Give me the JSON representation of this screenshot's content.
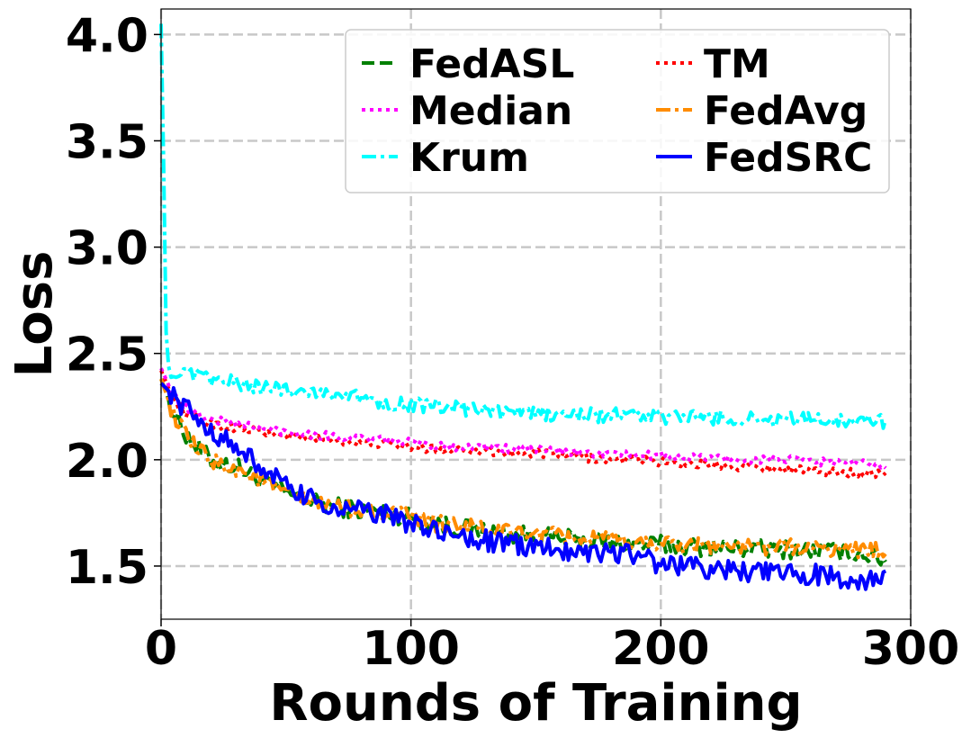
{
  "chart_data": {
    "type": "line",
    "title": "",
    "xlabel": "Rounds of Training",
    "ylabel": "Loss",
    "xlim": [
      0,
      300
    ],
    "ylim": [
      1.25,
      4.12
    ],
    "xticks": [
      0,
      100,
      200,
      300
    ],
    "yticks": [
      1.5,
      2.0,
      2.5,
      3.0,
      3.5,
      4.0
    ],
    "xtick_labels": [
      "0",
      "100",
      "200",
      "300"
    ],
    "ytick_labels": [
      "1.5",
      "2.0",
      "2.5",
      "3.0",
      "3.5",
      "4.0"
    ],
    "grid": true,
    "legend_position": "top-right",
    "series": [
      {
        "name": "FedASL",
        "color": "#008000",
        "dash": "dashed",
        "width": 4,
        "x": [
          0,
          5,
          10,
          15,
          20,
          25,
          30,
          40,
          50,
          60,
          70,
          80,
          90,
          100,
          110,
          120,
          130,
          140,
          150,
          160,
          170,
          180,
          190,
          200,
          210,
          220,
          230,
          240,
          250,
          260,
          270,
          280,
          290
        ],
        "y": [
          2.38,
          2.22,
          2.12,
          2.05,
          2.0,
          1.98,
          1.97,
          1.9,
          1.84,
          1.8,
          1.78,
          1.76,
          1.75,
          1.73,
          1.7,
          1.68,
          1.66,
          1.65,
          1.64,
          1.63,
          1.62,
          1.61,
          1.6,
          1.6,
          1.59,
          1.59,
          1.58,
          1.58,
          1.58,
          1.57,
          1.57,
          1.56,
          1.53
        ]
      },
      {
        "name": "TM",
        "color": "#ff0000",
        "dash": "dotted",
        "width": 4,
        "x": [
          0,
          5,
          10,
          15,
          20,
          25,
          30,
          40,
          50,
          60,
          70,
          80,
          90,
          100,
          110,
          120,
          130,
          140,
          150,
          160,
          170,
          180,
          190,
          200,
          210,
          220,
          230,
          240,
          250,
          260,
          270,
          280,
          290
        ],
        "y": [
          2.42,
          2.28,
          2.22,
          2.19,
          2.17,
          2.16,
          2.15,
          2.13,
          2.11,
          2.1,
          2.09,
          2.08,
          2.07,
          2.06,
          2.05,
          2.05,
          2.04,
          2.03,
          2.03,
          2.02,
          2.01,
          2.0,
          2.0,
          1.99,
          1.98,
          1.98,
          1.97,
          1.96,
          1.96,
          1.95,
          1.94,
          1.94,
          1.93
        ]
      },
      {
        "name": "Median",
        "color": "#ff00ff",
        "dash": "dotted",
        "width": 4,
        "x": [
          0,
          5,
          10,
          15,
          20,
          25,
          30,
          40,
          50,
          60,
          70,
          80,
          90,
          100,
          110,
          120,
          130,
          140,
          150,
          160,
          170,
          180,
          190,
          200,
          210,
          220,
          230,
          240,
          250,
          260,
          270,
          280,
          290
        ],
        "y": [
          2.43,
          2.3,
          2.24,
          2.21,
          2.19,
          2.18,
          2.17,
          2.15,
          2.13,
          2.12,
          2.11,
          2.1,
          2.09,
          2.08,
          2.07,
          2.06,
          2.06,
          2.05,
          2.05,
          2.04,
          2.03,
          2.03,
          2.02,
          2.02,
          2.01,
          2.01,
          2.0,
          2.0,
          2.0,
          1.99,
          1.99,
          1.98,
          1.98
        ]
      },
      {
        "name": "FedAvg",
        "color": "#ff8c00",
        "dash": "dashdot",
        "width": 4,
        "x": [
          0,
          5,
          10,
          15,
          20,
          25,
          30,
          40,
          50,
          60,
          70,
          80,
          90,
          100,
          110,
          120,
          130,
          140,
          150,
          160,
          170,
          180,
          190,
          200,
          210,
          220,
          230,
          240,
          250,
          260,
          270,
          280,
          290
        ],
        "y": [
          2.38,
          2.21,
          2.11,
          2.04,
          2.0,
          1.97,
          1.96,
          1.9,
          1.84,
          1.8,
          1.78,
          1.76,
          1.75,
          1.73,
          1.7,
          1.69,
          1.67,
          1.66,
          1.65,
          1.64,
          1.63,
          1.62,
          1.61,
          1.61,
          1.6,
          1.6,
          1.59,
          1.59,
          1.59,
          1.58,
          1.58,
          1.58,
          1.57
        ]
      },
      {
        "name": "Krum",
        "color": "#00ffff",
        "dash": "dashdot",
        "width": 4,
        "x": [
          0,
          1,
          2,
          3,
          5,
          10,
          15,
          20,
          25,
          30,
          40,
          50,
          60,
          70,
          80,
          90,
          100,
          110,
          120,
          130,
          140,
          150,
          160,
          170,
          180,
          190,
          200,
          210,
          220,
          230,
          240,
          250,
          260,
          270,
          280,
          290
        ],
        "y": [
          4.05,
          3.4,
          2.6,
          2.44,
          2.4,
          2.4,
          2.39,
          2.38,
          2.37,
          2.36,
          2.34,
          2.33,
          2.32,
          2.31,
          2.29,
          2.27,
          2.26,
          2.25,
          2.24,
          2.23,
          2.22,
          2.22,
          2.21,
          2.21,
          2.21,
          2.21,
          2.2,
          2.2,
          2.2,
          2.19,
          2.19,
          2.19,
          2.19,
          2.19,
          2.19,
          2.18
        ]
      },
      {
        "name": "FedSRC",
        "color": "#0000ff",
        "dash": "solid",
        "width": 4,
        "x": [
          0,
          5,
          10,
          15,
          20,
          25,
          30,
          40,
          50,
          60,
          70,
          80,
          90,
          100,
          110,
          120,
          130,
          140,
          150,
          160,
          170,
          180,
          190,
          200,
          210,
          220,
          230,
          240,
          250,
          260,
          270,
          280,
          290
        ],
        "y": [
          2.36,
          2.3,
          2.24,
          2.18,
          2.14,
          2.1,
          2.05,
          1.97,
          1.87,
          1.81,
          1.77,
          1.76,
          1.74,
          1.7,
          1.66,
          1.64,
          1.62,
          1.6,
          1.59,
          1.58,
          1.57,
          1.57,
          1.55,
          1.51,
          1.5,
          1.49,
          1.48,
          1.47,
          1.46,
          1.46,
          1.45,
          1.44,
          1.43
        ]
      }
    ]
  }
}
